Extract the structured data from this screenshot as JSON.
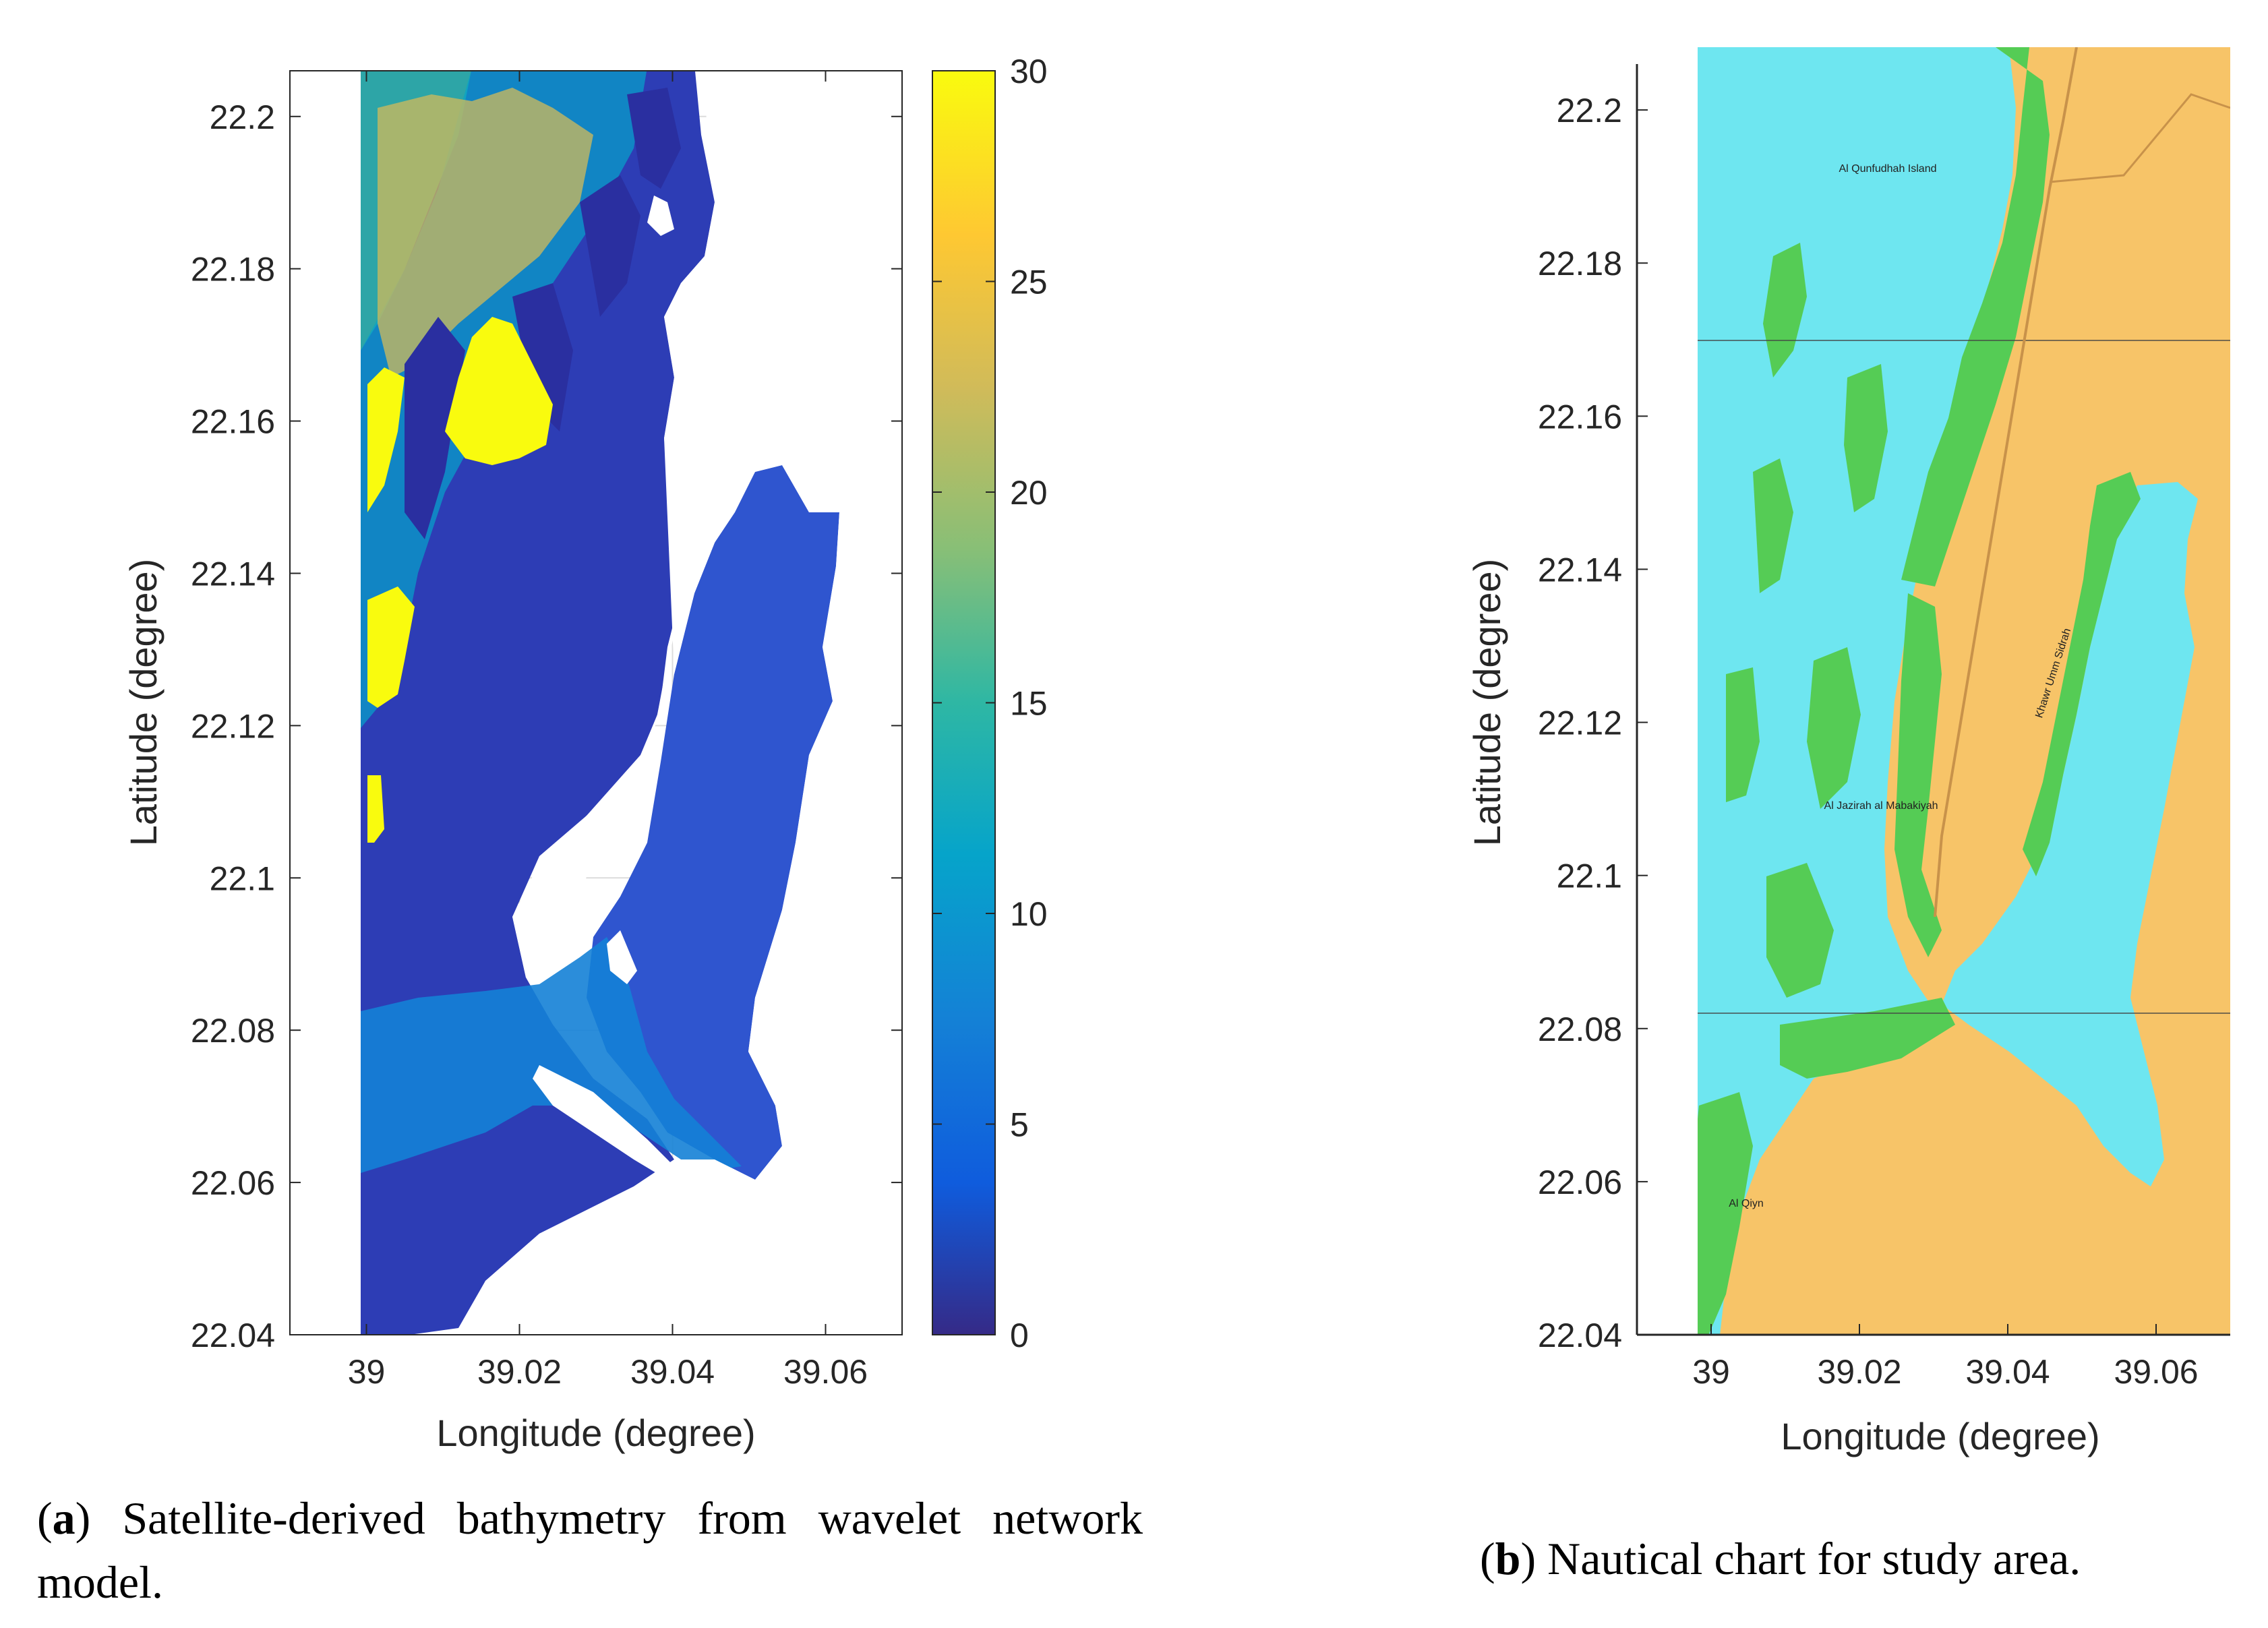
{
  "panels": [
    {
      "id": "a",
      "caption_letter": "a",
      "caption_text": "Satellite-derived bathymetry from wavelet network model."
    },
    {
      "id": "b",
      "caption_letter": "b",
      "caption_text": "Nautical chart for study area."
    }
  ],
  "chart_data": [
    {
      "type": "heatmap",
      "panel": "a",
      "xlabel": "Longitude (degree)",
      "ylabel": "Latitude (degree)",
      "xlim": [
        38.99,
        39.07
      ],
      "ylim": [
        22.04,
        22.206
      ],
      "xticks": [
        39,
        39.02,
        39.04,
        39.06
      ],
      "xtick_labels": [
        "39",
        "39.02",
        "39.04",
        "39.06"
      ],
      "yticks": [
        22.04,
        22.06,
        22.08,
        22.1,
        22.12,
        22.14,
        22.16,
        22.18,
        22.2
      ],
      "ytick_labels": [
        "22.04",
        "22.06",
        "22.08",
        "22.1",
        "22.12",
        "22.14",
        "22.16",
        "22.18",
        "22.2"
      ],
      "grid": true,
      "colorbar": {
        "colormap": "parula",
        "range": [
          0,
          30
        ],
        "ticks": [
          0,
          5,
          10,
          15,
          20,
          25,
          30
        ],
        "tick_labels": [
          "0",
          "5",
          "10",
          "15",
          "20",
          "25",
          "30"
        ],
        "colors": [
          "#352a87",
          "#0f5cdd",
          "#1481d6",
          "#06a4ca",
          "#2eb7a4",
          "#87bf77",
          "#d1bb59",
          "#fec832",
          "#f9fb0e"
        ]
      },
      "data_extent": {
        "lon": [
          38.999,
          39.061
        ],
        "lat": [
          22.04,
          22.206
        ]
      }
    },
    {
      "type": "heatmap",
      "panel": "b",
      "xlabel": "Longitude (degree)",
      "ylabel": "Latitude (degree)",
      "xlim": [
        38.99,
        39.07
      ],
      "ylim": [
        22.04,
        22.206
      ],
      "xticks": [
        39,
        39.02,
        39.04,
        39.06
      ],
      "xtick_labels": [
        "39",
        "39.02",
        "39.04",
        "39.06"
      ],
      "yticks": [
        22.04,
        22.06,
        22.08,
        22.1,
        22.12,
        22.14,
        22.16,
        22.18,
        22.2
      ],
      "ytick_labels": [
        "22.04",
        "22.06",
        "22.08",
        "22.1",
        "22.12",
        "22.14",
        "22.16",
        "22.18",
        "22.2"
      ],
      "grid": false,
      "colors": {
        "water": "#6ee6f0",
        "shallow": "#55cc55",
        "land": "#f7c468"
      },
      "chart_labels": [
        "Al Qunfudhah Island",
        "Al Jazirah al Mabakiyah",
        "Khawr Umm Sidrah",
        "Al Qiyn"
      ]
    }
  ]
}
